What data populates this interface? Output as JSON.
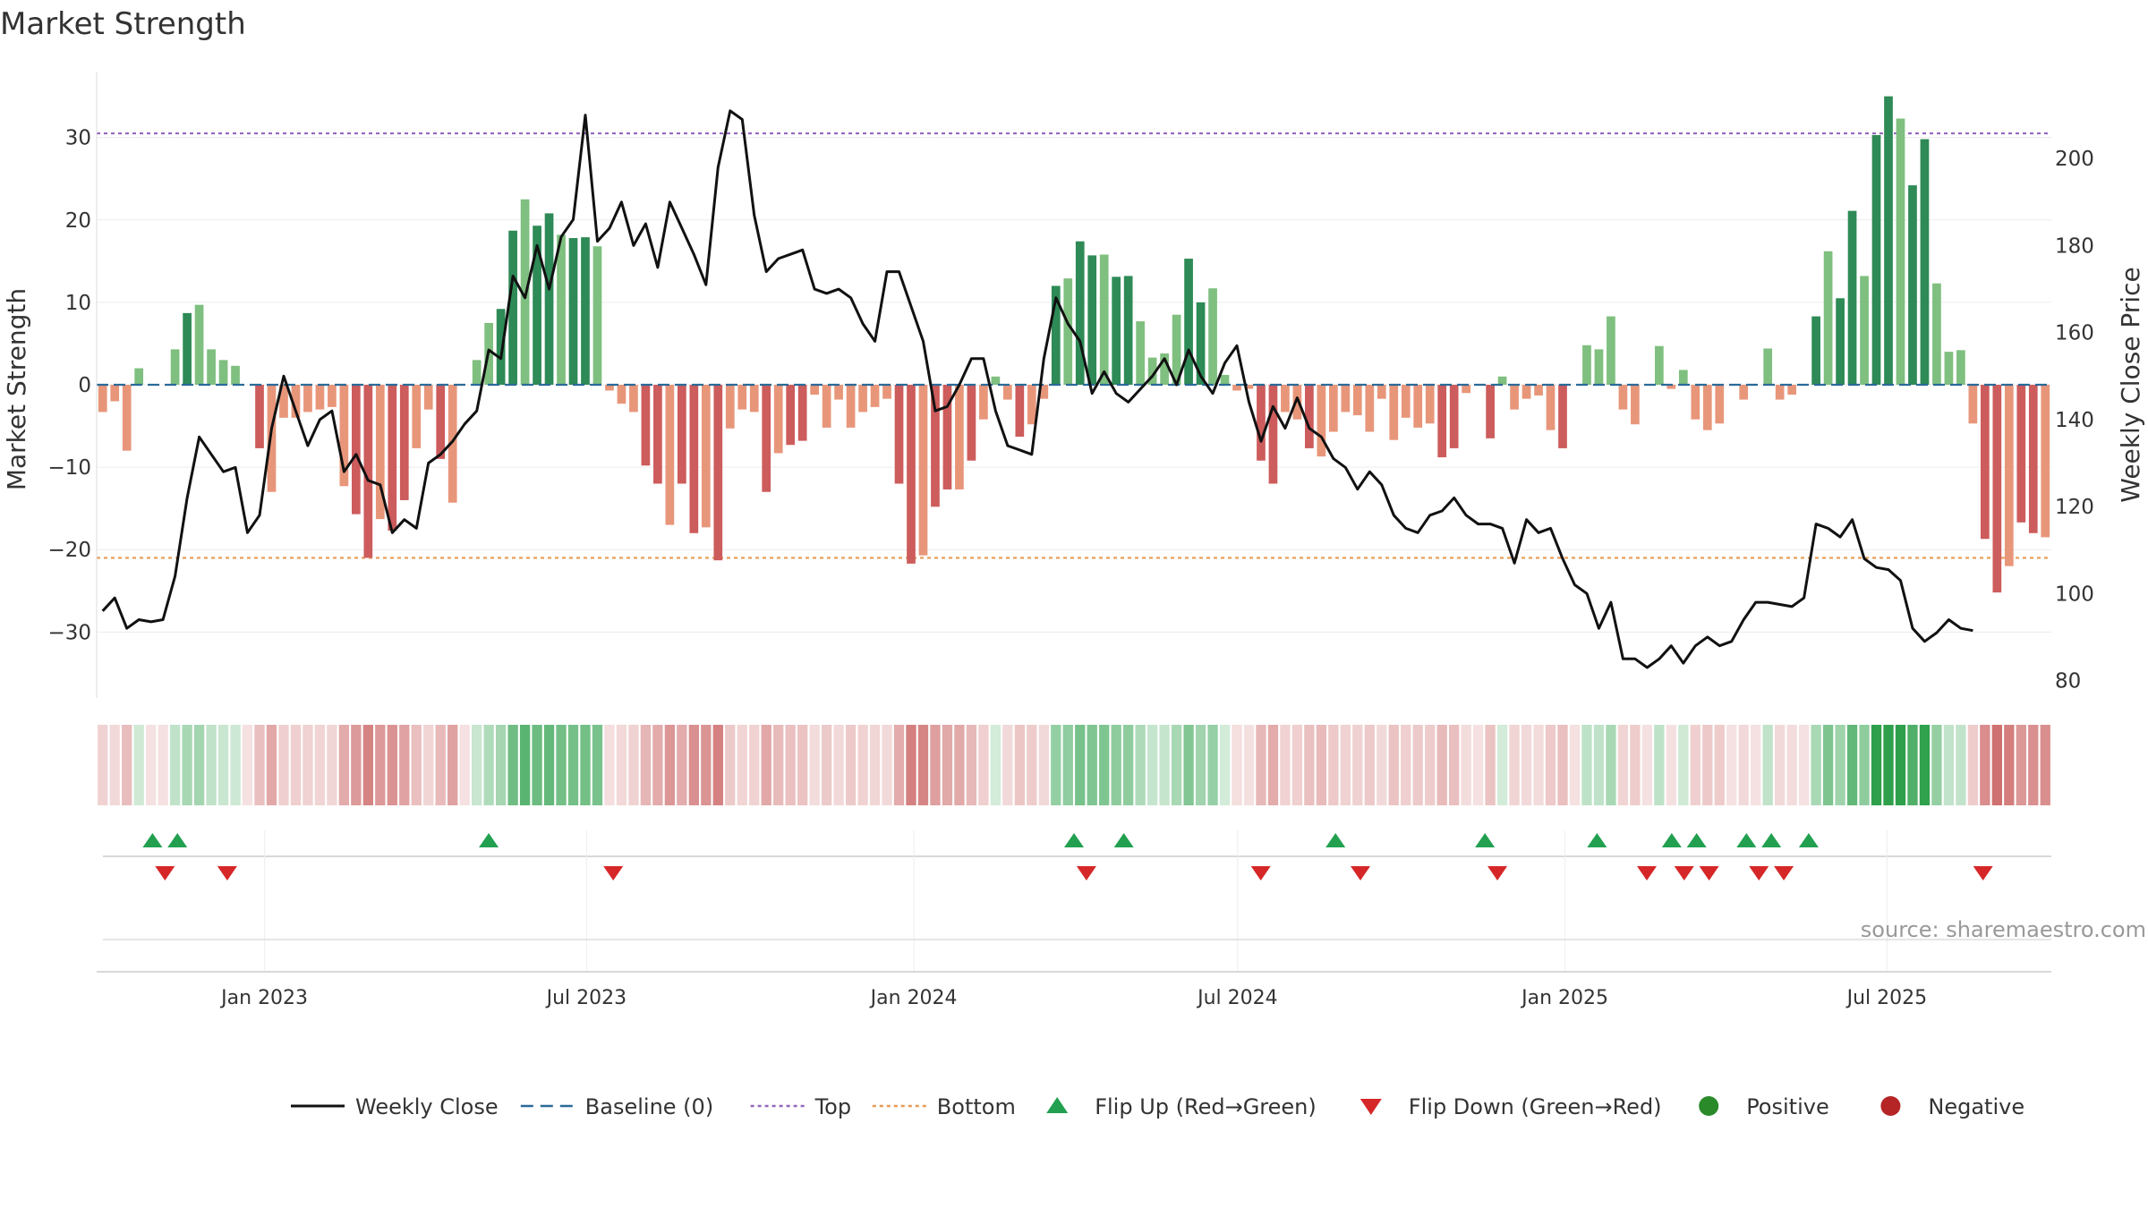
{
  "chart_data": {
    "type": "bar",
    "title": "Market Strength",
    "ylabel": "Market Strength",
    "y2label": "Weekly Close Price",
    "ylim": [
      -38,
      38
    ],
    "y2lim": [
      76,
      220
    ],
    "yticks": [
      -30,
      -20,
      -10,
      0,
      10,
      20,
      30
    ],
    "y2ticks": [
      80,
      100,
      120,
      140,
      160,
      180,
      200
    ],
    "top_level": 30.5,
    "bottom_level": -21,
    "x_start": "2022-10-02",
    "x_end": "2025-09-28",
    "xticks": [
      {
        "date": "2023-01-01",
        "label": "Jan 2023"
      },
      {
        "date": "2023-07-01",
        "label": "Jul 2023"
      },
      {
        "date": "2024-01-01",
        "label": "Jan 2024"
      },
      {
        "date": "2024-07-01",
        "label": "Jul 2024"
      },
      {
        "date": "2025-01-01",
        "label": "Jan 2025"
      },
      {
        "date": "2025-07-01",
        "label": "Jul 2025"
      }
    ],
    "series": [
      {
        "name": "Weekly Close",
        "type": "line",
        "axis": "right",
        "values": [
          96,
          99,
          92,
          94,
          93.5,
          94,
          104,
          122,
          136,
          132,
          128,
          129,
          114,
          118,
          138,
          150,
          142,
          134,
          140,
          142,
          128,
          132,
          126,
          125,
          114,
          117,
          115,
          130,
          132,
          135,
          139,
          142,
          156,
          154,
          173,
          168,
          180,
          170,
          182,
          186,
          210,
          181,
          184,
          190,
          180,
          185,
          175,
          190,
          184,
          178,
          171,
          198,
          211,
          209,
          187,
          174,
          177,
          178,
          179,
          170,
          169,
          170,
          168,
          162,
          158,
          174,
          174,
          166,
          158,
          142,
          143,
          148,
          154,
          154,
          142,
          134,
          133,
          132,
          154,
          168,
          162,
          158,
          146,
          151,
          146,
          144,
          147,
          150,
          154,
          148,
          156,
          150,
          146,
          153,
          157,
          144,
          135,
          143,
          138,
          145,
          138,
          136,
          131,
          129,
          124,
          128,
          125,
          118,
          115,
          114,
          118,
          119,
          122,
          118,
          116,
          116,
          115,
          107,
          117,
          114,
          115,
          108,
          102,
          100,
          92,
          98,
          85,
          85,
          83,
          85,
          88,
          84,
          88,
          90,
          88,
          89,
          94,
          98,
          98,
          97.5,
          97,
          99,
          116,
          115,
          113,
          117,
          108,
          106,
          105.5,
          103,
          92,
          89,
          91,
          94,
          92,
          91.5
        ]
      },
      {
        "name": "Market Strength",
        "type": "bar",
        "axis": "left",
        "values": [
          -3.3,
          -2,
          -8,
          2,
          0,
          0,
          4.3,
          8.7,
          9.7,
          4.3,
          3,
          2.3,
          0,
          -7.7,
          -13,
          -4,
          -4,
          -3.3,
          -3,
          -2.7,
          -12.3,
          -15.7,
          -21,
          -16.3,
          -17.7,
          -14,
          -7.7,
          -3,
          -9,
          -14.3,
          0,
          3,
          7.5,
          9.2,
          18.7,
          22.5,
          19.3,
          20.8,
          18.2,
          17.8,
          17.9,
          16.8,
          -0.7,
          -2.3,
          -3.3,
          -9.8,
          -12,
          -17,
          -12,
          -18,
          -17.3,
          -21.3,
          -5.3,
          -3,
          -3.3,
          -13,
          -8.3,
          -7.3,
          -6.8,
          -1.2,
          -5.2,
          -1.8,
          -5.2,
          -3.3,
          -2.7,
          -1.7,
          -12,
          -21.7,
          -20.7,
          -14.8,
          -12.7,
          -12.7,
          -9.2,
          -4.2,
          1,
          -1.8,
          -6.3,
          -4.8,
          -1.7,
          12,
          12.9,
          17.4,
          15.7,
          15.8,
          13.1,
          13.2,
          7.7,
          3.3,
          3.8,
          8.5,
          15.3,
          10,
          11.7,
          1.2,
          -0.7,
          -0.5,
          -9.2,
          -12,
          -3.3,
          -4.2,
          -7.7,
          -8.7,
          -5.7,
          -3.3,
          -3.7,
          -5.7,
          -1.7,
          -6.7,
          -4,
          -5.2,
          -4.7,
          -8.8,
          -7.7,
          -1,
          0,
          -6.5,
          1,
          -3,
          -1.7,
          -1.3,
          -5.5,
          -7.7,
          0,
          4.8,
          4.3,
          8.3,
          -3,
          -4.8,
          0,
          4.7,
          -0.5,
          1.8,
          -4.2,
          -5.5,
          -4.7,
          0,
          -1.8,
          0,
          4.4,
          -1.8,
          -1.2,
          0,
          8.3,
          16.2,
          10.5,
          21.1,
          13.2,
          30.3,
          35,
          32.3,
          24.2,
          29.8,
          12.3,
          4,
          4.2,
          -4.7,
          -18.7,
          -25.2,
          -22,
          -16.7,
          -18,
          -18.5
        ]
      }
    ],
    "strength_strip": "per-week cell coloured by Market Strength (green = positive, red = negative, intensity = magnitude)",
    "flips": {
      "up": [
        "2022-10-30",
        "2022-11-13",
        "2023-05-07",
        "2024-03-31",
        "2024-04-28",
        "2024-08-25",
        "2024-11-17",
        "2025-01-19",
        "2025-03-02",
        "2025-03-16",
        "2025-04-13",
        "2025-04-27",
        "2025-05-18"
      ],
      "down": [
        "2022-11-06",
        "2022-12-11",
        "2023-07-16",
        "2024-04-07",
        "2024-07-14",
        "2024-09-08",
        "2024-11-24",
        "2025-02-16",
        "2025-03-09",
        "2025-03-23",
        "2025-04-20",
        "2025-05-04",
        "2025-08-24"
      ]
    },
    "legend": [
      {
        "label": "Weekly Close",
        "marker": "line",
        "color": "#111111"
      },
      {
        "label": "Baseline (0)",
        "marker": "dash",
        "color": "#2b6a99"
      },
      {
        "label": "Top",
        "marker": "dot",
        "color": "#9467bd"
      },
      {
        "label": "Bottom",
        "marker": "dot",
        "color": "#e69a55"
      },
      {
        "label": "Flip Up (Red→Green)",
        "marker": "triangle-up",
        "color": "#22a050"
      },
      {
        "label": "Flip Down (Green→Red)",
        "marker": "triangle-down",
        "color": "#d62728"
      },
      {
        "label": "Positive",
        "marker": "circle",
        "color": "#2a8a2a"
      },
      {
        "label": "Negative",
        "marker": "circle",
        "color": "#b52525"
      }
    ],
    "legend_position": "bottom",
    "grid": true
  },
  "source": "source: sharemaestro.com",
  "colors": {
    "pos_strong": "#2e8a56",
    "pos_light": "#7fbf7f",
    "neg_strong": "#cd5c5c",
    "neg_light": "#e8967a",
    "line": "#111111",
    "baseline": "#2b6a99",
    "top": "#9467bd",
    "bottom": "#e69a55",
    "flip_up": "#22a050",
    "flip_down": "#d62728"
  }
}
